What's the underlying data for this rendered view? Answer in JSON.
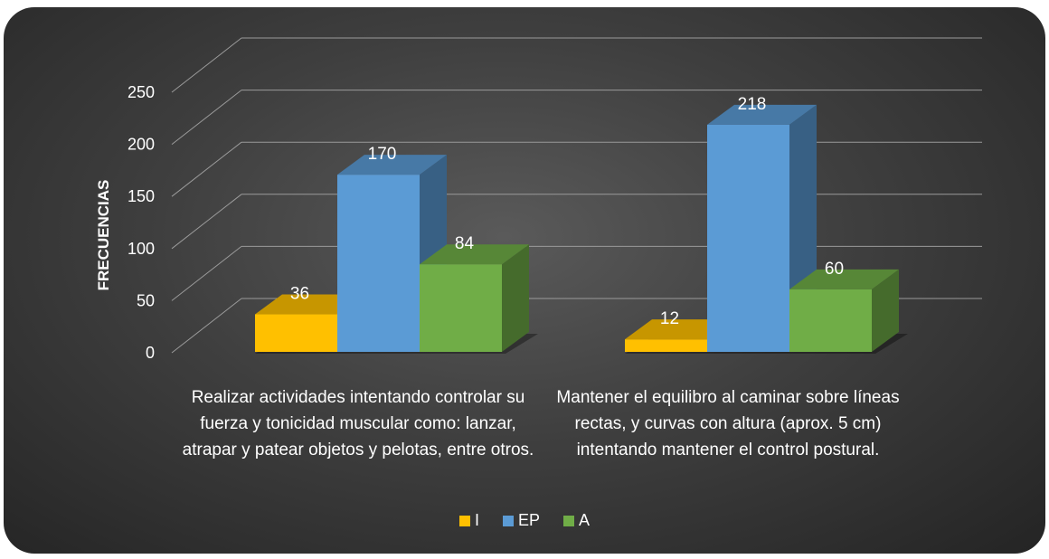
{
  "chart_data": {
    "type": "bar",
    "ylabel": "FRECUENCIAS",
    "ylim": [
      0,
      250
    ],
    "yticks": [
      "0",
      "50",
      "100",
      "150",
      "200",
      "250"
    ],
    "categories": [
      "Realizar actividades intentando controlar su fuerza y tonicidad muscular como: lanzar, atrapar y patear objetos y pelotas, entre otros.",
      "Mantener el equilibro al caminar sobre líneas rectas, y curvas con altura (aprox. 5 cm) intentando mantener el control postural."
    ],
    "series": [
      {
        "name": "I",
        "values": [
          36,
          12
        ],
        "color": "#FFC000"
      },
      {
        "name": "EP",
        "values": [
          170,
          218
        ],
        "color": "#5B9BD5"
      },
      {
        "name": "A",
        "values": [
          84,
          60
        ],
        "color": "#70AD47"
      }
    ],
    "grid": true,
    "legend": "bottom",
    "style": "3d-clustered-column"
  }
}
